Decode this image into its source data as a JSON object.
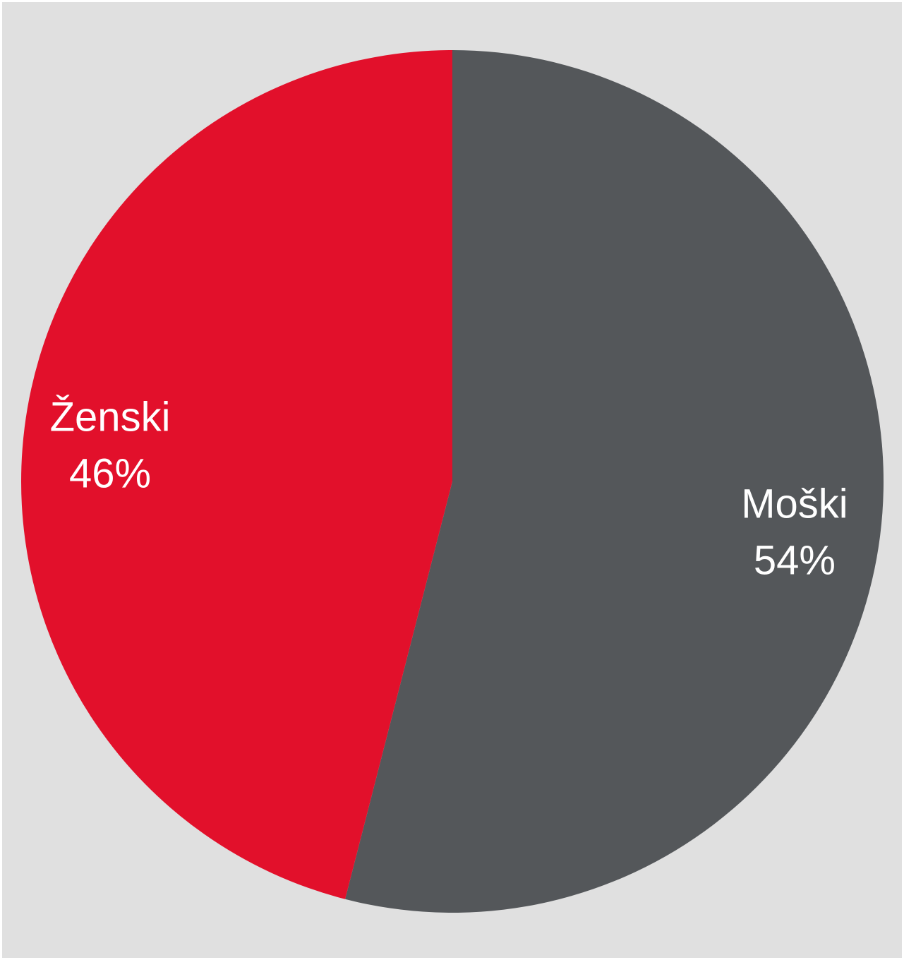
{
  "chart_data": {
    "type": "pie",
    "title": "",
    "start_angle_deg": 0,
    "direction": "clockwise",
    "slices": [
      {
        "label": "Moški",
        "value": 54,
        "value_label": "54%",
        "color": "#54575a"
      },
      {
        "label": "Ženski",
        "value": 46,
        "value_label": "46%",
        "color": "#e2102b"
      }
    ],
    "background_color": "#e0e0e0"
  }
}
